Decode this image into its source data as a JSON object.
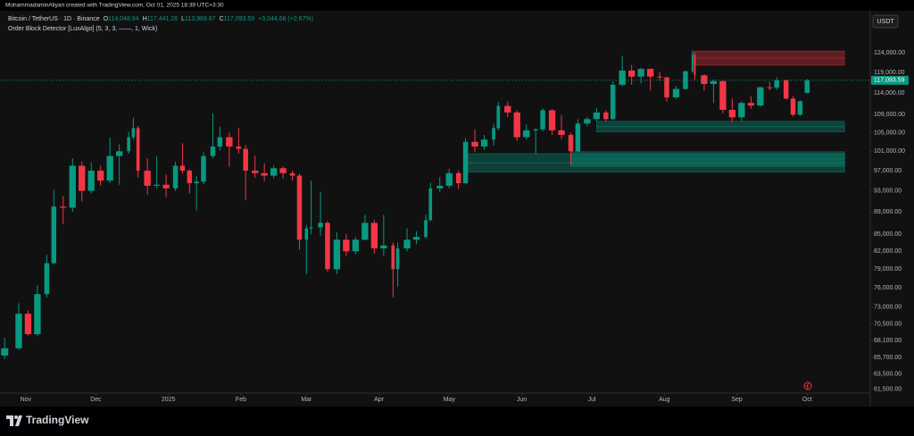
{
  "credit": "MohammadaminAliyari created with TradingView.com, Oct 01, 2025 18:39 UTC+3:30",
  "brand": "TradingView",
  "header": {
    "title": "Bitcoin / TetherUS · 1D · Binance",
    "ohlc": [
      {
        "key": "O",
        "value": "114,048.94"
      },
      {
        "key": "H",
        "value": "117,441.26"
      },
      {
        "key": "L",
        "value": "113,966.67"
      },
      {
        "key": "C",
        "value": "117,093.59"
      }
    ],
    "change": "+3,044.66 (+2.67%)",
    "indicator": "Order Block Detector [LuxAlgo] (5, 3, 3, ——, 1, Wick)"
  },
  "currency": "USDT",
  "chart_data": {
    "type": "candlestick",
    "log_scale": true,
    "grid": false,
    "up_color": "#089981",
    "down_color": "#f23645",
    "x": [
      "2024-10-23",
      "2024-10-29",
      "2024-11-02",
      "2024-11-06",
      "2024-11-10",
      "2024-11-13",
      "2024-11-17",
      "2024-11-21",
      "2024-11-25",
      "2024-11-29",
      "2024-12-03",
      "2024-12-07",
      "2024-12-11",
      "2024-12-15",
      "2024-12-17",
      "2024-12-19",
      "2024-12-23",
      "2024-12-27",
      "2024-12-31",
      "2025-01-04",
      "2025-01-07",
      "2025-01-10",
      "2025-01-13",
      "2025-01-16",
      "2025-01-20",
      "2025-01-23",
      "2025-01-27",
      "2025-01-31",
      "2025-02-03",
      "2025-02-07",
      "2025-02-11",
      "2025-02-15",
      "2025-02-19",
      "2025-02-23",
      "2025-02-26",
      "2025-03-01",
      "2025-03-03",
      "2025-03-07",
      "2025-03-10",
      "2025-03-14",
      "2025-03-18",
      "2025-03-22",
      "2025-03-26",
      "2025-03-30",
      "2025-04-03",
      "2025-04-07",
      "2025-04-09",
      "2025-04-13",
      "2025-04-17",
      "2025-04-21",
      "2025-04-23",
      "2025-04-27",
      "2025-05-01",
      "2025-05-05",
      "2025-05-08",
      "2025-05-12",
      "2025-05-16",
      "2025-05-20",
      "2025-05-22",
      "2025-05-26",
      "2025-05-30",
      "2025-06-03",
      "2025-06-07",
      "2025-06-10",
      "2025-06-14",
      "2025-06-18",
      "2025-06-22",
      "2025-06-25",
      "2025-06-29",
      "2025-07-03",
      "2025-07-07",
      "2025-07-10",
      "2025-07-14",
      "2025-07-18",
      "2025-07-22",
      "2025-07-26",
      "2025-07-30",
      "2025-08-02",
      "2025-08-06",
      "2025-08-10",
      "2025-08-13",
      "2025-08-14",
      "2025-08-18",
      "2025-08-22",
      "2025-08-26",
      "2025-08-30",
      "2025-09-03",
      "2025-09-07",
      "2025-09-11",
      "2025-09-15",
      "2025-09-18",
      "2025-09-22",
      "2025-09-25",
      "2025-09-28",
      "2025-10-01"
    ],
    "open": [
      66000,
      67000,
      72000,
      69000,
      75000,
      80000,
      90000,
      89800,
      98000,
      93000,
      97000,
      95000,
      100000,
      101000,
      104000,
      106000,
      97000,
      94000,
      94200,
      93500,
      98000,
      97000,
      94500,
      94800,
      100000,
      102000,
      104000,
      102000,
      101500,
      97000,
      96500,
      96000,
      97500,
      96500,
      96000,
      84000,
      86000,
      86200,
      87000,
      79000,
      84000,
      82000,
      84000,
      87000,
      82500,
      83000,
      79000,
      82500,
      84000,
      84500,
      87500,
      93500,
      94000,
      96500,
      94500,
      103000,
      102000,
      103500,
      106000,
      111000,
      109500,
      104000,
      105500,
      105700,
      110000,
      105500,
      104500,
      101000,
      107000,
      108000,
      109500,
      108000,
      116000,
      119500,
      118000,
      119900,
      118000,
      117800,
      113000,
      115000,
      119300,
      123500,
      118300,
      116200,
      116900,
      110100,
      108400,
      111700,
      111100,
      115400,
      115300,
      117100,
      112700,
      109000,
      114048.94
    ],
    "high": [
      68500,
      73600,
      72500,
      76400,
      81400,
      93200,
      92000,
      99500,
      98900,
      98700,
      98000,
      103900,
      102500,
      105200,
      108300,
      106500,
      99500,
      99900,
      96200,
      98800,
      102700,
      97300,
      95900,
      100800,
      109300,
      106300,
      105000,
      106000,
      102300,
      100100,
      98500,
      98000,
      97900,
      97000,
      96400,
      86600,
      95000,
      92800,
      87300,
      85300,
      85000,
      84500,
      88500,
      87500,
      88500,
      83500,
      83500,
      86000,
      85500,
      88500,
      94600,
      95700,
      97400,
      97000,
      103800,
      105700,
      104500,
      107000,
      111900,
      112000,
      110000,
      106800,
      106000,
      110500,
      110300,
      108900,
      105000,
      108000,
      108500,
      110500,
      110000,
      116800,
      123200,
      120900,
      120200,
      120000,
      119200,
      118000,
      115700,
      119500,
      124500,
      124000,
      118600,
      117300,
      117000,
      112700,
      112100,
      113300,
      115500,
      116800,
      117900,
      117300,
      113300,
      112300,
      117441.26
    ],
    "low": [
      65500,
      66800,
      68800,
      68700,
      74500,
      79800,
      86800,
      89000,
      91000,
      92500,
      94000,
      94500,
      94200,
      100500,
      103500,
      95600,
      92300,
      93500,
      91800,
      93000,
      96400,
      92500,
      89300,
      94300,
      99500,
      101200,
      97800,
      100500,
      91200,
      95600,
      94900,
      95500,
      95400,
      95000,
      82300,
      78200,
      85000,
      84700,
      78600,
      78200,
      81200,
      81500,
      83900,
      81600,
      81200,
      74500,
      76200,
      82000,
      83200,
      84200,
      87300,
      92800,
      93500,
      93400,
      94300,
      100800,
      101300,
      102200,
      105500,
      108500,
      103200,
      103500,
      100400,
      105300,
      104500,
      103600,
      98200,
      100800,
      106400,
      107500,
      107500,
      107800,
      115600,
      116000,
      116300,
      114700,
      116900,
      112000,
      112700,
      114800,
      118900,
      117200,
      114600,
      111700,
      109300,
      107300,
      107600,
      110300,
      110800,
      114700,
      114800,
      112500,
      108600,
      108700,
      113966.67
    ],
    "close": [
      67000,
      72000,
      69000,
      75000,
      80000,
      90000,
      89800,
      98000,
      93000,
      97000,
      95000,
      100000,
      101000,
      104000,
      106000,
      97000,
      94000,
      94200,
      93500,
      98000,
      97000,
      94500,
      94800,
      100000,
      102000,
      104000,
      102000,
      101500,
      97000,
      96500,
      96000,
      97500,
      96500,
      96000,
      84000,
      86000,
      86200,
      87000,
      79000,
      84000,
      82000,
      84000,
      87000,
      82500,
      83000,
      79000,
      82500,
      84000,
      84500,
      87500,
      93500,
      94000,
      96500,
      94500,
      103000,
      102000,
      103500,
      106000,
      111000,
      109500,
      104000,
      105500,
      105700,
      110000,
      105500,
      104500,
      101000,
      107000,
      108000,
      109500,
      108000,
      116000,
      119500,
      118000,
      119900,
      118000,
      117800,
      113000,
      115000,
      119300,
      123500,
      118300,
      116200,
      116900,
      110100,
      108400,
      111700,
      111100,
      115400,
      115300,
      117100,
      112700,
      109000,
      112100,
      117093.59
    ],
    "last_price": {
      "value": 117093.59,
      "label": "117,093.59"
    },
    "order_blocks": [
      {
        "start": "2025-08-13",
        "end": "2025-10-17",
        "top": 124460,
        "bottom": 120820,
        "mid": 122640,
        "color": "#f23645"
      },
      {
        "start": "2025-07-03",
        "end": "2025-10-17",
        "top": 107500,
        "bottom": 105150,
        "mid": 106300,
        "color": "#089981"
      },
      {
        "start": "2025-05-08",
        "end": "2025-10-17",
        "top": 100500,
        "bottom": 96700,
        "mid": 98600,
        "color": "#089981"
      },
      {
        "start": "2025-06-22",
        "end": "2025-10-17",
        "top": 100900,
        "bottom": 97900,
        "mid": 99400,
        "color": "#089981"
      }
    ],
    "xlim": [
      "2024-10-21",
      "2025-10-28"
    ],
    "xticks": [
      {
        "value": "2024-11-01",
        "label": "Nov"
      },
      {
        "value": "2024-12-01",
        "label": "Dec"
      },
      {
        "value": "2025-01-01",
        "label": "2025"
      },
      {
        "value": "2025-02-01",
        "label": "Feb"
      },
      {
        "value": "2025-03-01",
        "label": "Mar"
      },
      {
        "value": "2025-04-01",
        "label": "Apr"
      },
      {
        "value": "2025-05-01",
        "label": "May"
      },
      {
        "value": "2025-06-01",
        "label": "Jun"
      },
      {
        "value": "2025-07-01",
        "label": "Jul"
      },
      {
        "value": "2025-08-01",
        "label": "Aug"
      },
      {
        "value": "2025-09-01",
        "label": "Sep"
      },
      {
        "value": "2025-10-01",
        "label": "Oct"
      }
    ],
    "ylim": [
      60800,
      134600
    ],
    "yticks": [
      {
        "value": 124000,
        "label": "124,000.00"
      },
      {
        "value": 119000,
        "label": "119,000.00"
      },
      {
        "value": 114000,
        "label": "114,000.00"
      },
      {
        "value": 109000,
        "label": "109,000.00"
      },
      {
        "value": 105000,
        "label": "105,000.00"
      },
      {
        "value": 101000,
        "label": "101,000.00"
      },
      {
        "value": 97000,
        "label": "97,000.00"
      },
      {
        "value": 93000,
        "label": "93,000.00"
      },
      {
        "value": 89000,
        "label": "89,000.00"
      },
      {
        "value": 85000,
        "label": "85,000.00"
      },
      {
        "value": 82000,
        "label": "82,000.00"
      },
      {
        "value": 79000,
        "label": "79,000.00"
      },
      {
        "value": 76000,
        "label": "76,000.00"
      },
      {
        "value": 73000,
        "label": "73,000.00"
      },
      {
        "value": 70500,
        "label": "70,500.00"
      },
      {
        "value": 68100,
        "label": "68,100.00"
      },
      {
        "value": 65700,
        "label": "65,700.00"
      },
      {
        "value": 63500,
        "label": "63,500.00"
      },
      {
        "value": 61500,
        "label": "61,500.00"
      }
    ]
  }
}
